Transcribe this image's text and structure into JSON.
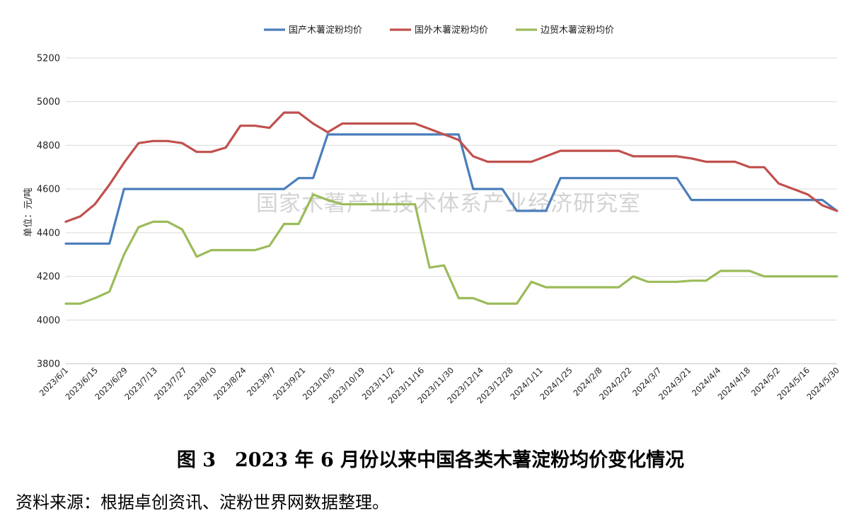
{
  "chart_data": {
    "type": "line",
    "title": "",
    "ylabel": "单位：元/吨",
    "xlabel": "",
    "ylim": [
      3800,
      5200
    ],
    "yticks": [
      "3800",
      "4000",
      "4200",
      "4400",
      "4600",
      "4800",
      "5000",
      "5200"
    ],
    "grid": "horizontal",
    "legend_position": "top",
    "watermark": "国家木薯产业技术体系产业经济研究室",
    "x_labels": [
      "2023/6/1",
      "2023/6/15",
      "2023/6/29",
      "2023/7/13",
      "2023/7/27",
      "2023/8/10",
      "2023/8/24",
      "2023/9/7",
      "2023/9/21",
      "2023/10/5",
      "2023/10/19",
      "2023/11/2",
      "2023/11/16",
      "2023/11/30",
      "2023/12/14",
      "2023/12/28",
      "2024/1/11",
      "2024/1/25",
      "2024/2/8",
      "2024/2/22",
      "2024/3/7",
      "2024/3/21",
      "2024/4/4",
      "2024/4/18",
      "2024/5/2",
      "2024/5/16",
      "2024/5/30"
    ],
    "series": [
      {
        "name": "国产木薯淀粉均价",
        "color": "#4a7ebb",
        "values": [
          4350,
          4350,
          4350,
          4350,
          4600,
          4600,
          4600,
          4600,
          4600,
          4600,
          4600,
          4600,
          4600,
          4600,
          4600,
          4600,
          4650,
          4650,
          4850,
          4850,
          4850,
          4850,
          4850,
          4850,
          4850,
          4850,
          4850,
          4850,
          4600,
          4600,
          4600,
          4500,
          4500,
          4500,
          4650,
          4650,
          4650,
          4650,
          4650,
          4650,
          4650,
          4650,
          4650,
          4550,
          4550,
          4550,
          4550,
          4550,
          4550,
          4550,
          4550,
          4550,
          4550,
          4500
        ]
      },
      {
        "name": "国外木薯淀粉均价",
        "color": "#c0504d",
        "values": [
          4450,
          4475,
          4530,
          4620,
          4720,
          4810,
          4820,
          4820,
          4810,
          4770,
          4770,
          4790,
          4890,
          4890,
          4880,
          4950,
          4950,
          4900,
          4860,
          4900,
          4900,
          4900,
          4900,
          4900,
          4900,
          4875,
          4850,
          4825,
          4750,
          4725,
          4725,
          4725,
          4725,
          4750,
          4775,
          4775,
          4775,
          4775,
          4775,
          4750,
          4750,
          4750,
          4750,
          4740,
          4725,
          4725,
          4725,
          4700,
          4700,
          4625,
          4600,
          4575,
          4525,
          4500
        ]
      },
      {
        "name": "边贸木薯淀粉均价",
        "color": "#9bbb59",
        "values": [
          4075,
          4075,
          4100,
          4130,
          4300,
          4425,
          4450,
          4450,
          4415,
          4290,
          4320,
          4320,
          4320,
          4320,
          4340,
          4440,
          4440,
          4575,
          4550,
          4530,
          4530,
          4530,
          4530,
          4530,
          4530,
          4240,
          4250,
          4100,
          4100,
          4075,
          4075,
          4075,
          4175,
          4150,
          4150,
          4150,
          4150,
          4150,
          4150,
          4200,
          4175,
          4175,
          4175,
          4180,
          4180,
          4225,
          4225,
          4225,
          4200,
          4200,
          4200,
          4200,
          4200,
          4200
        ]
      }
    ]
  },
  "caption": "图 3　2023 年 6 月份以来中国各类木薯淀粉均价变化情况",
  "source": "资料来源：根据卓创资讯、淀粉世界网数据整理。"
}
